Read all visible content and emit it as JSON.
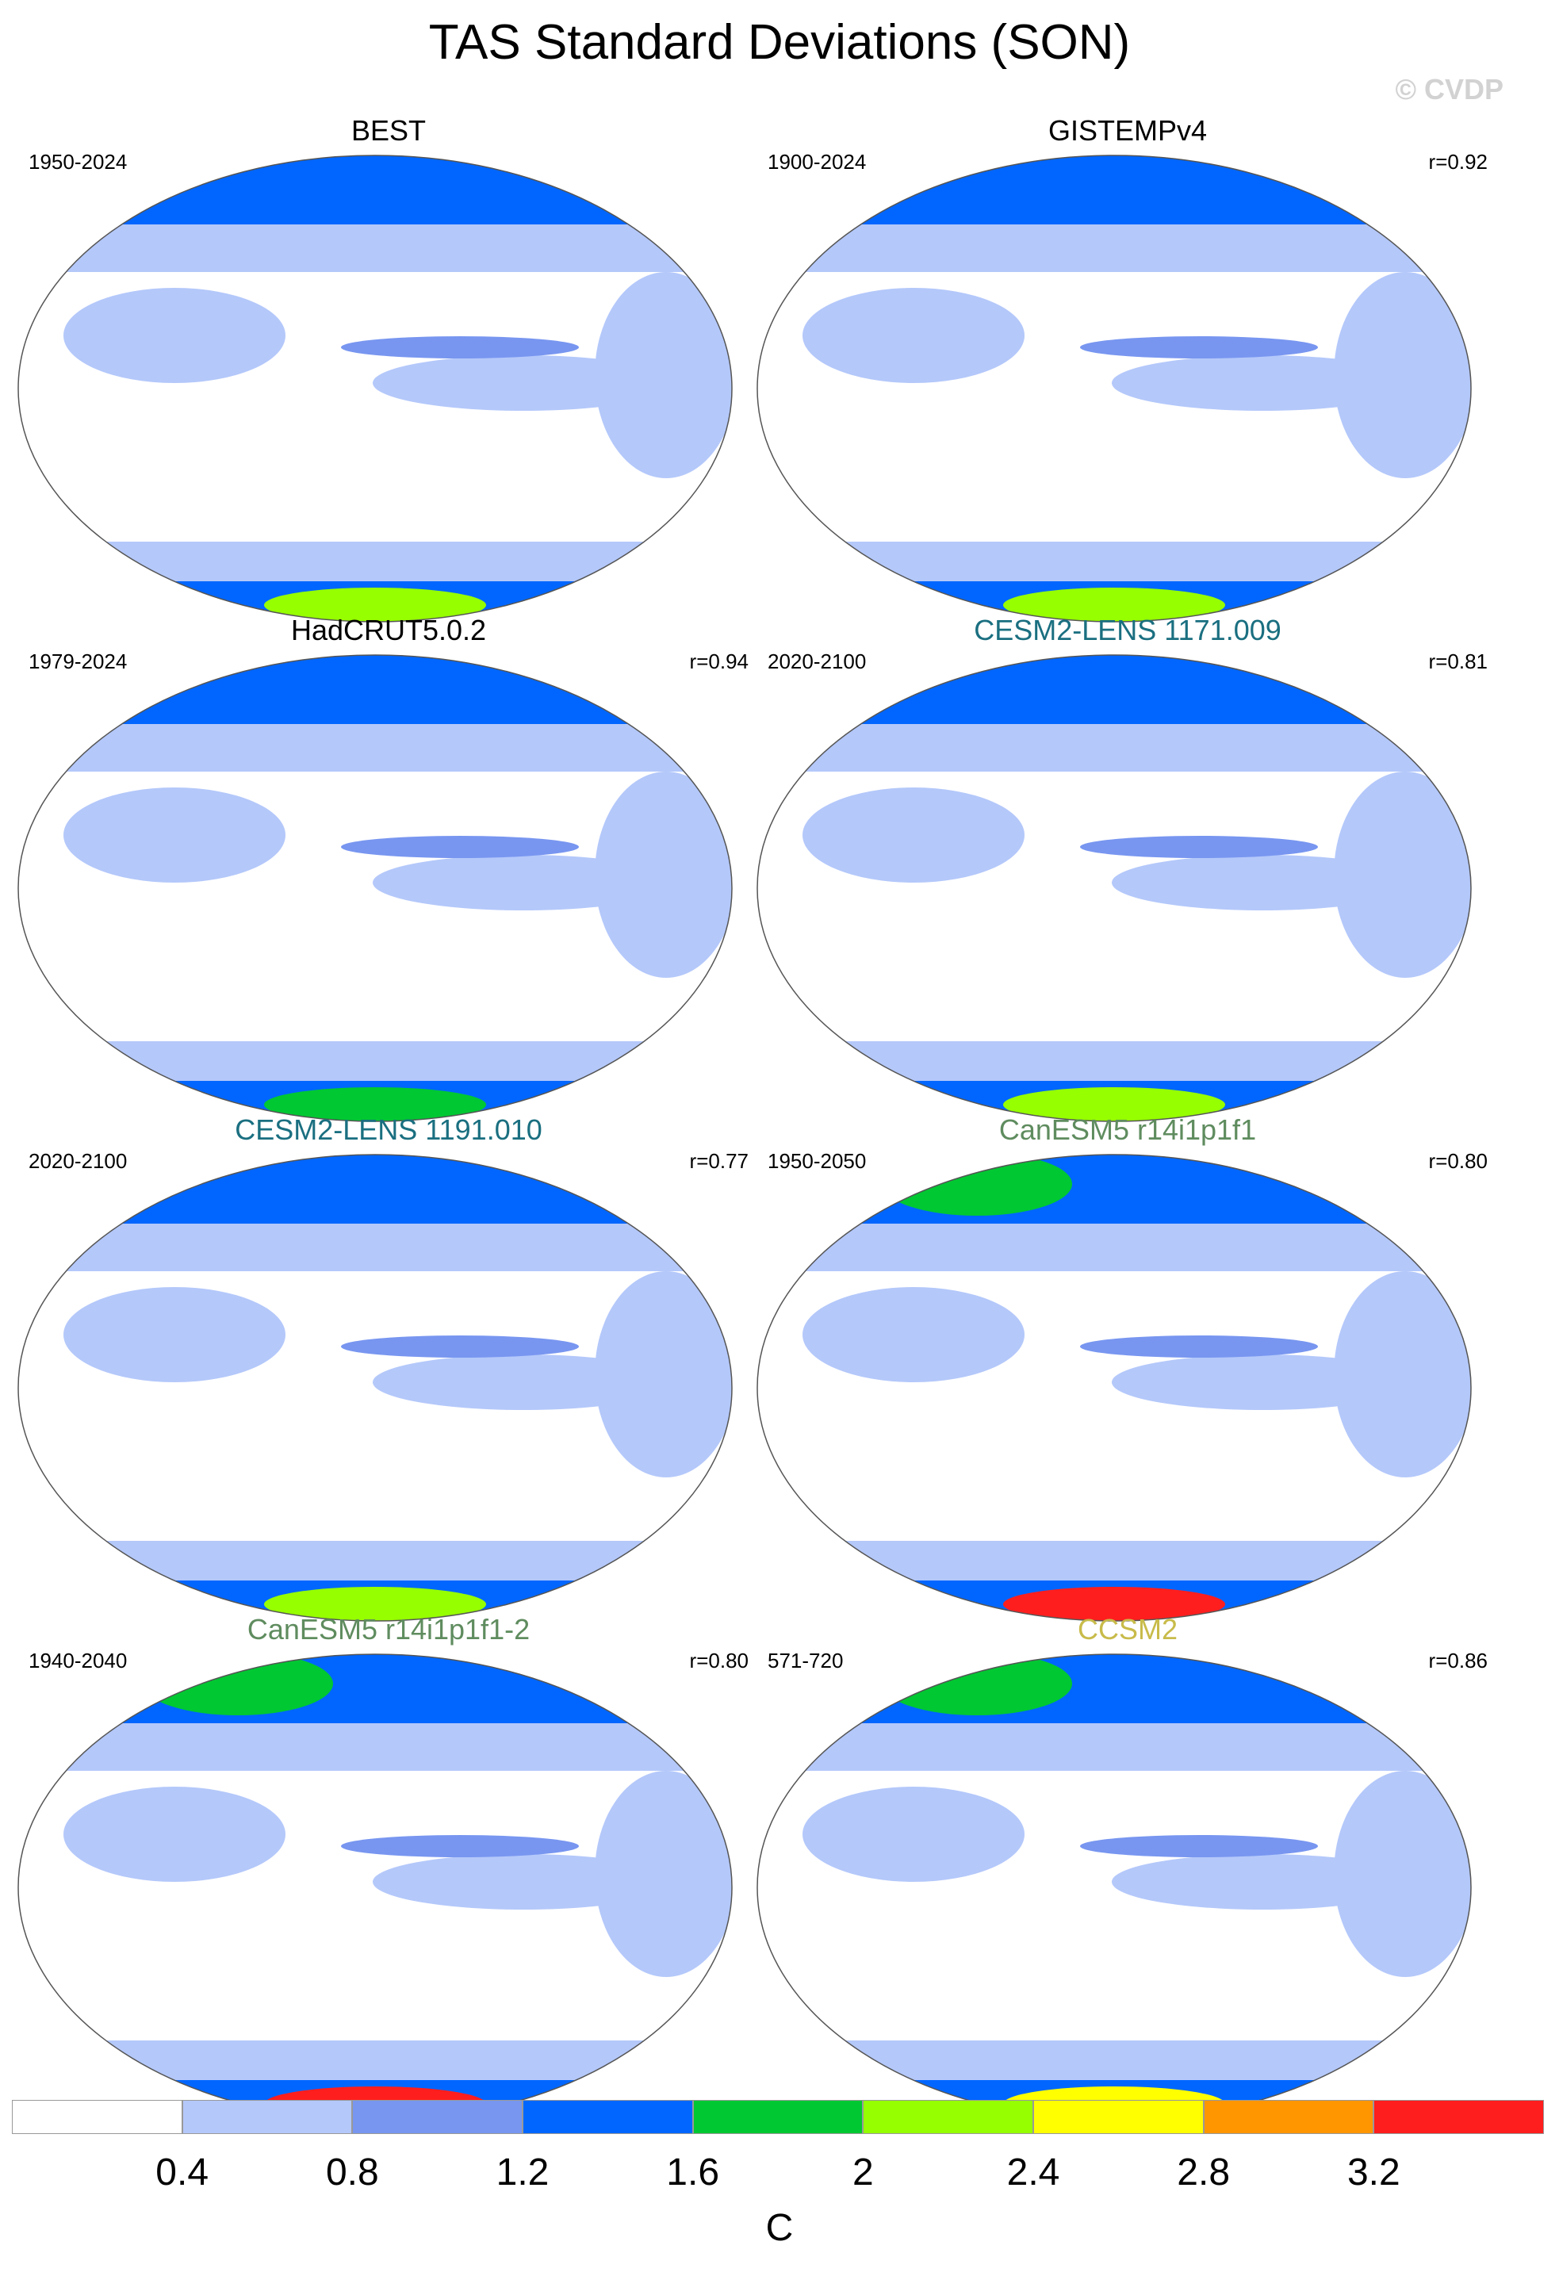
{
  "title": "TAS Standard Deviations (SON)",
  "watermark": "© CVDP",
  "panels": [
    {
      "name": "BEST",
      "period": "1950-2024",
      "corr": "",
      "title_color": "#000000",
      "band": "2",
      "arctic": "#0066ff"
    },
    {
      "name": "GISTEMPv4",
      "period": "1900-2024",
      "corr": "r=0.92",
      "title_color": "#000000",
      "band": "2",
      "arctic": "#0066ff"
    },
    {
      "name": "HadCRUT5.0.2",
      "period": "1979-2024",
      "corr": "r=0.94",
      "title_color": "#000000",
      "band": "1.6",
      "arctic": "#0066ff"
    },
    {
      "name": "CESM2-LENS 1171.009",
      "period": "2020-2100",
      "corr": "r=0.81",
      "title_color": "#1a6f80",
      "band": "2",
      "arctic": "#0066ff"
    },
    {
      "name": "CESM2-LENS 1191.010",
      "period": "2020-2100",
      "corr": "r=0.77",
      "title_color": "#1a6f80",
      "band": "2",
      "arctic": "#0066ff"
    },
    {
      "name": "CanESM5 r14i1p1f1",
      "period": "1950-2050",
      "corr": "r=0.80",
      "title_color": "#5f8c5f",
      "band": "3.2",
      "arctic": "#00c832"
    },
    {
      "name": "CanESM5 r14i1p1f1-2",
      "period": "1940-2040",
      "corr": "r=0.80",
      "title_color": "#5f8c5f",
      "band": "3.2",
      "arctic": "#00c832"
    },
    {
      "name": "CCSM2",
      "period": "571-720",
      "corr": "r=0.86",
      "title_color": "#c8bb4a",
      "band": "2.4",
      "arctic": "#00c832"
    }
  ],
  "colorbar": {
    "units": "C",
    "levels": [
      "0.4",
      "0.8",
      "1.2",
      "1.6",
      "2",
      "2.4",
      "2.8",
      "3.2"
    ],
    "colors": [
      "#ffffff",
      "#b4c8fa",
      "#7896f0",
      "#0066ff",
      "#00c832",
      "#96ff00",
      "#ffff00",
      "#ff9600",
      "#ff1e1e"
    ]
  }
}
